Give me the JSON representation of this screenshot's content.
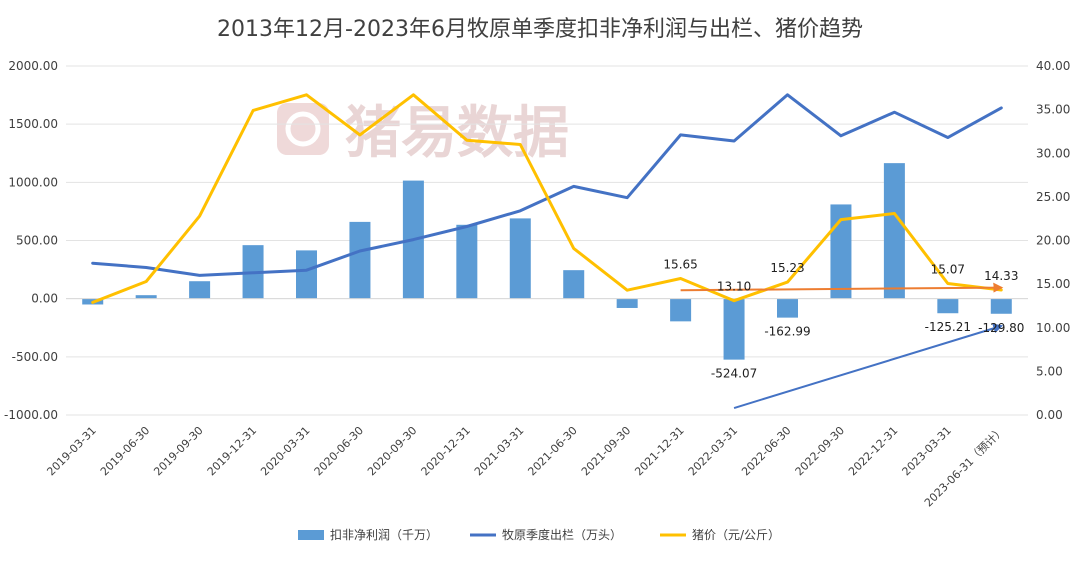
{
  "chart_data": {
    "type": "bar+line",
    "title": "2013年12月-2023年6月牧原单季度扣非净利润与出栏、猪价趋势",
    "watermark": "猪易数据",
    "categories": [
      "2019-03-31",
      "2019-06-30",
      "2019-09-30",
      "2019-12-31",
      "2020-03-31",
      "2020-06-30",
      "2020-09-30",
      "2020-12-31",
      "2021-03-31",
      "2021-06-30",
      "2021-09-30",
      "2021-12-31",
      "2022-03-31",
      "2022-06-30",
      "2022-09-30",
      "2022-12-31",
      "2023-03-31",
      "2023-06-31（预计）"
    ],
    "left_axis": {
      "min": -1000,
      "max": 2000,
      "ticks": [
        "-1000.00",
        "-500.00",
        "0.00",
        "500.00",
        "1000.00",
        "1500.00",
        "2000.00"
      ]
    },
    "right_axis": {
      "min": 0,
      "max": 40,
      "ticks": [
        "0.00",
        "5.00",
        "10.00",
        "15.00",
        "20.00",
        "25.00",
        "30.00",
        "35.00",
        "40.00"
      ]
    },
    "series": [
      {
        "name": "扣非净利润（千万）",
        "type": "bar",
        "axis": "left",
        "color": "#5b9bd5",
        "values": [
          -50,
          30,
          150,
          460,
          415,
          660,
          1015,
          635,
          690,
          245,
          -80,
          -195,
          -524.07,
          -162.99,
          810,
          1165,
          -125.21,
          -129.8
        ]
      },
      {
        "name": "牧原季度出栏（万头）",
        "type": "line",
        "axis": "right",
        "color": "#4472c4",
        "values": [
          17.4,
          16.9,
          16.0,
          16.3,
          16.6,
          18.8,
          20.1,
          21.6,
          23.4,
          26.2,
          24.9,
          32.1,
          31.4,
          36.7,
          32.0,
          34.7,
          31.8,
          35.2
        ]
      },
      {
        "name": "猪价（元/公斤）",
        "type": "line",
        "axis": "right",
        "color": "#ffc000",
        "values": [
          12.9,
          15.3,
          22.8,
          34.9,
          36.7,
          32.1,
          36.7,
          31.5,
          31.0,
          19.1,
          14.3,
          15.65,
          13.1,
          15.23,
          22.4,
          23.1,
          15.07,
          14.33
        ]
      }
    ],
    "data_labels": [
      {
        "text": "15.65",
        "series": 2,
        "index": 11
      },
      {
        "text": "13.10",
        "series": 2,
        "index": 12
      },
      {
        "text": "15.23",
        "series": 2,
        "index": 13
      },
      {
        "text": "15.07",
        "series": 2,
        "index": 16
      },
      {
        "text": "14.33",
        "series": 2,
        "index": 17
      },
      {
        "text": "-524.07",
        "series": 0,
        "index": 12
      },
      {
        "text": "-162.99",
        "series": 0,
        "index": 13
      },
      {
        "text": "-125.21",
        "series": 0,
        "index": 16
      },
      {
        "text": "-129.80",
        "series": 0,
        "index": 17
      }
    ],
    "annotations": [
      {
        "type": "arrow",
        "color": "#ed7d31",
        "from": {
          "index": 11,
          "value": 14.3
        },
        "to": {
          "index": 17,
          "value": 14.6
        }
      },
      {
        "type": "arrow",
        "color": "#4472c4",
        "from": {
          "index": 12,
          "value": 0.8
        },
        "to": {
          "index": 17,
          "value": 10.2
        }
      }
    ],
    "legend_position": "bottom",
    "grid": "horizontal"
  }
}
